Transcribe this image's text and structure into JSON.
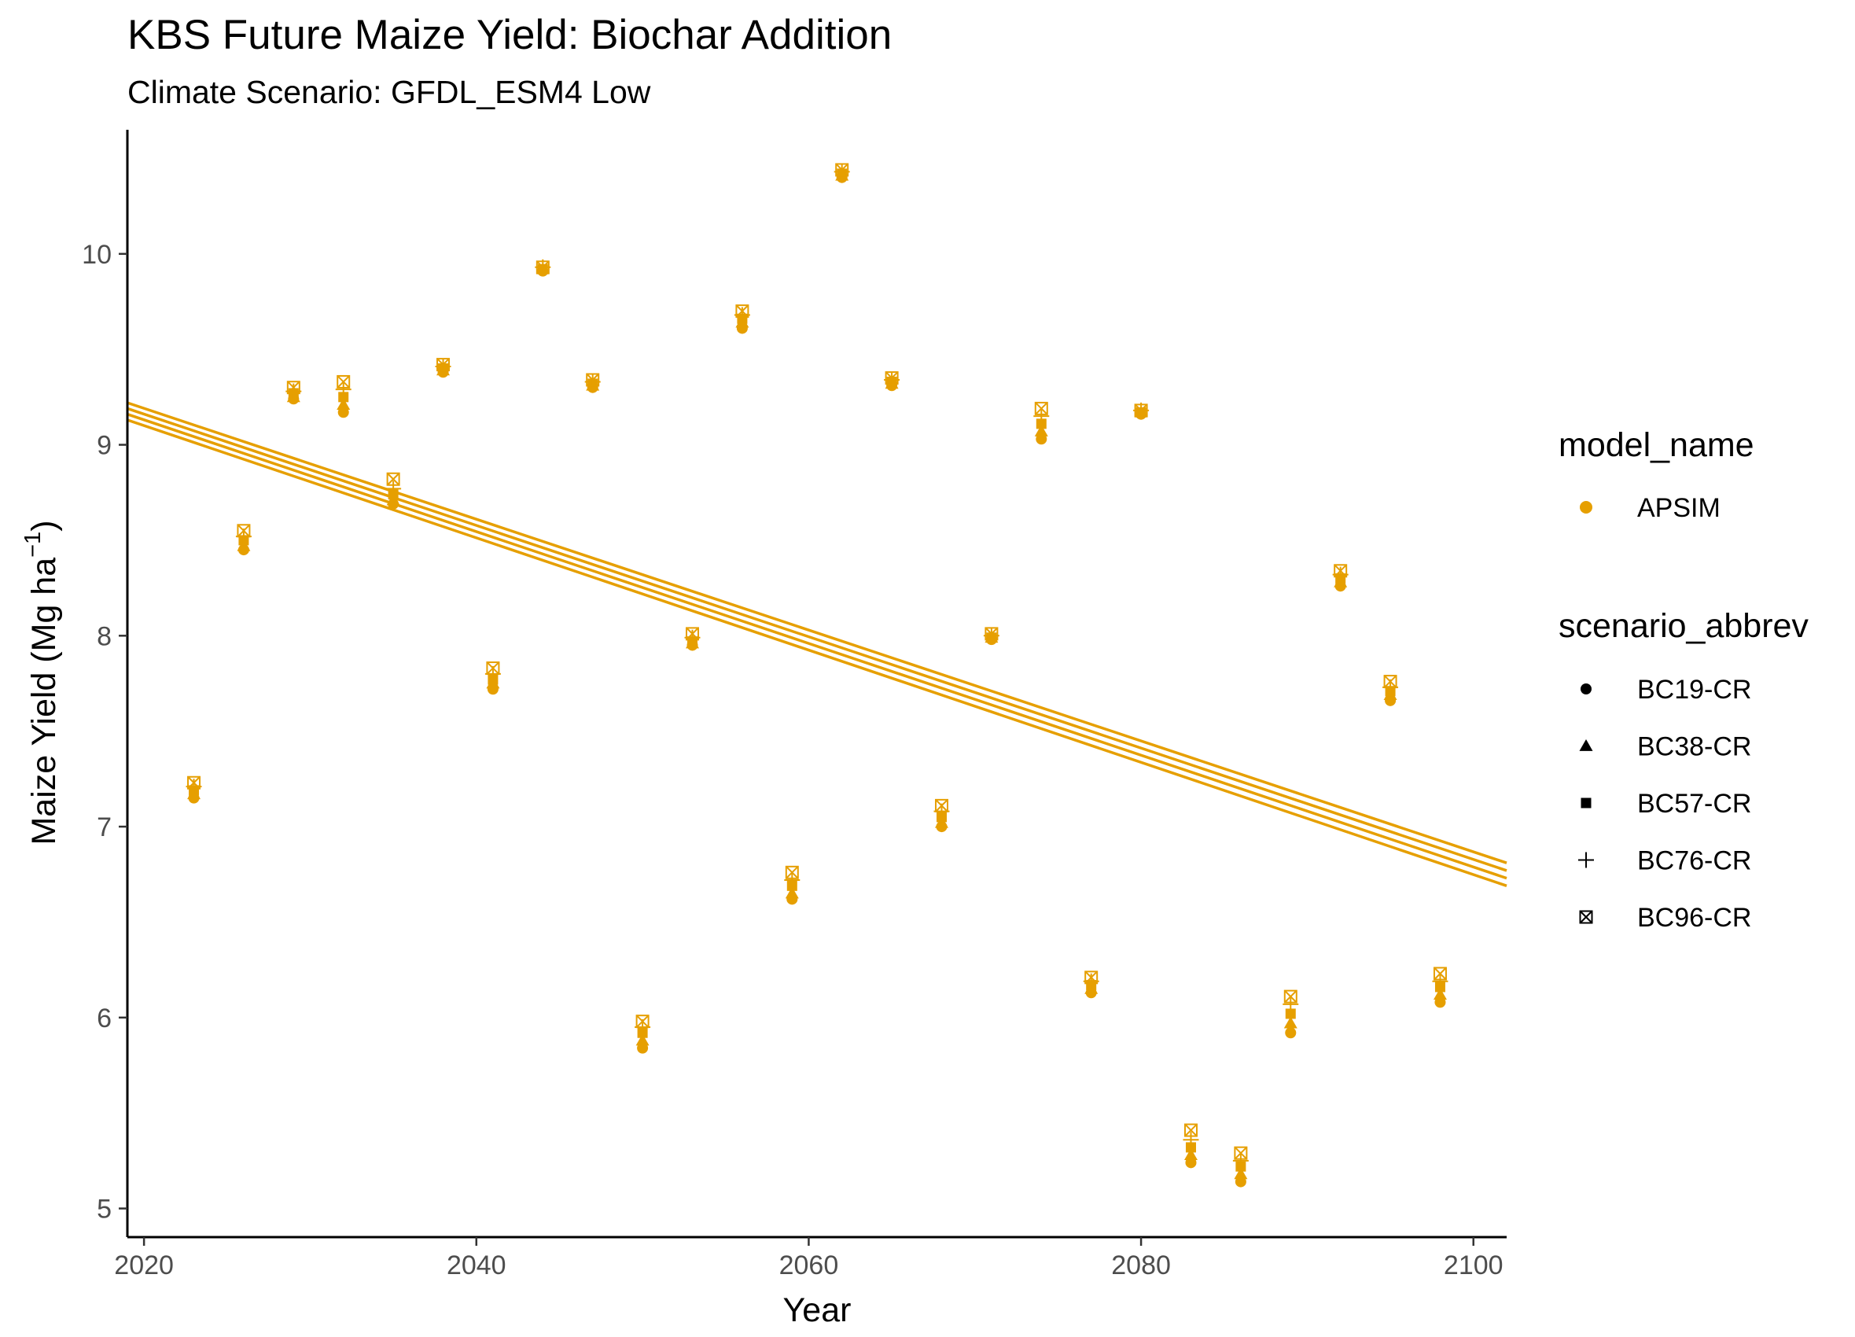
{
  "chart_data": {
    "type": "scatter",
    "title": "KBS Future Maize Yield: Biochar Addition",
    "subtitle": "Climate Scenario: GFDL_ESM4 Low",
    "xlabel": "Year",
    "ylabel_main": "Maize Yield (Mg ha",
    "ylabel_sup": "−1",
    "ylabel_close": ")",
    "xlim": [
      2019,
      2102
    ],
    "ylim": [
      4.85,
      10.65
    ],
    "x_ticks": [
      2020,
      2040,
      2060,
      2080,
      2100
    ],
    "x_tick_labels": [
      "2020",
      "2040",
      "2060",
      "2080",
      "2100"
    ],
    "y_ticks": [
      5,
      6,
      7,
      8,
      9,
      10
    ],
    "y_tick_labels": [
      "5",
      "6",
      "7",
      "8",
      "9",
      "10"
    ],
    "grid": false,
    "color": "#E69F00",
    "years": [
      2023,
      2026,
      2029,
      2032,
      2035,
      2038,
      2041,
      2044,
      2047,
      2050,
      2053,
      2056,
      2059,
      2062,
      2065,
      2068,
      2071,
      2074,
      2077,
      2080,
      2083,
      2086,
      2089,
      2092,
      2095,
      2098
    ],
    "series": [
      {
        "name": "BC19-CR",
        "shape": "circle",
        "values": [
          7.15,
          8.45,
          9.24,
          9.17,
          8.69,
          9.38,
          7.72,
          9.91,
          9.3,
          5.84,
          7.95,
          9.61,
          6.62,
          10.4,
          9.31,
          7.0,
          7.98,
          9.03,
          6.13,
          9.16,
          5.24,
          5.14,
          5.92,
          8.26,
          7.66,
          6.08
        ]
      },
      {
        "name": "BC38-CR",
        "shape": "triangle",
        "values": [
          7.17,
          8.47,
          9.25,
          9.21,
          8.71,
          9.39,
          7.75,
          9.92,
          9.31,
          5.88,
          7.96,
          9.64,
          6.65,
          10.41,
          9.32,
          7.02,
          7.99,
          9.07,
          6.15,
          9.17,
          5.28,
          5.18,
          5.97,
          8.28,
          7.69,
          6.12
        ]
      },
      {
        "name": "BC57-CR",
        "shape": "square",
        "values": [
          7.19,
          8.5,
          9.27,
          9.25,
          8.74,
          9.4,
          7.77,
          9.92,
          9.32,
          5.92,
          7.97,
          9.66,
          6.69,
          10.42,
          9.33,
          7.05,
          7.99,
          9.11,
          6.17,
          9.17,
          5.32,
          5.22,
          6.02,
          8.3,
          7.71,
          6.16
        ]
      },
      {
        "name": "BC76-CR",
        "shape": "plus",
        "values": [
          7.21,
          8.52,
          9.28,
          9.29,
          8.77,
          9.41,
          7.8,
          9.93,
          9.33,
          5.95,
          7.99,
          9.68,
          6.72,
          10.43,
          9.34,
          7.08,
          8.0,
          9.15,
          6.19,
          9.18,
          5.36,
          5.25,
          6.07,
          8.32,
          7.73,
          6.19
        ]
      },
      {
        "name": "BC96-CR",
        "shape": "boxcross",
        "values": [
          7.23,
          8.55,
          9.3,
          9.33,
          8.82,
          9.42,
          7.83,
          9.93,
          9.34,
          5.98,
          8.01,
          9.7,
          6.76,
          10.44,
          9.35,
          7.11,
          8.01,
          9.19,
          6.21,
          9.18,
          5.41,
          5.29,
          6.11,
          8.34,
          7.76,
          6.23
        ]
      }
    ],
    "trend_lines": [
      {
        "name": "BC19-CR",
        "x": [
          2019,
          2102
        ],
        "y": [
          9.13,
          6.69
        ]
      },
      {
        "name": "BC38-CR",
        "x": [
          2019,
          2102
        ],
        "y": [
          9.16,
          6.73
        ]
      },
      {
        "name": "BC57-CR",
        "x": [
          2019,
          2102
        ],
        "y": [
          9.19,
          6.77
        ]
      },
      {
        "name": "BC76-CR",
        "x": [
          2019,
          2102
        ],
        "y": [
          9.22,
          6.81
        ]
      }
    ],
    "legend": {
      "placement": "right",
      "model_title": "model_name",
      "model_items": [
        {
          "label": "APSIM"
        }
      ],
      "scenario_title": "scenario_abbrev",
      "scenario_items": [
        {
          "label": "BC19-CR",
          "shape": "circle"
        },
        {
          "label": "BC38-CR",
          "shape": "triangle"
        },
        {
          "label": "BC57-CR",
          "shape": "square"
        },
        {
          "label": "BC76-CR",
          "shape": "plus"
        },
        {
          "label": "BC96-CR",
          "shape": "boxcross"
        }
      ]
    }
  }
}
